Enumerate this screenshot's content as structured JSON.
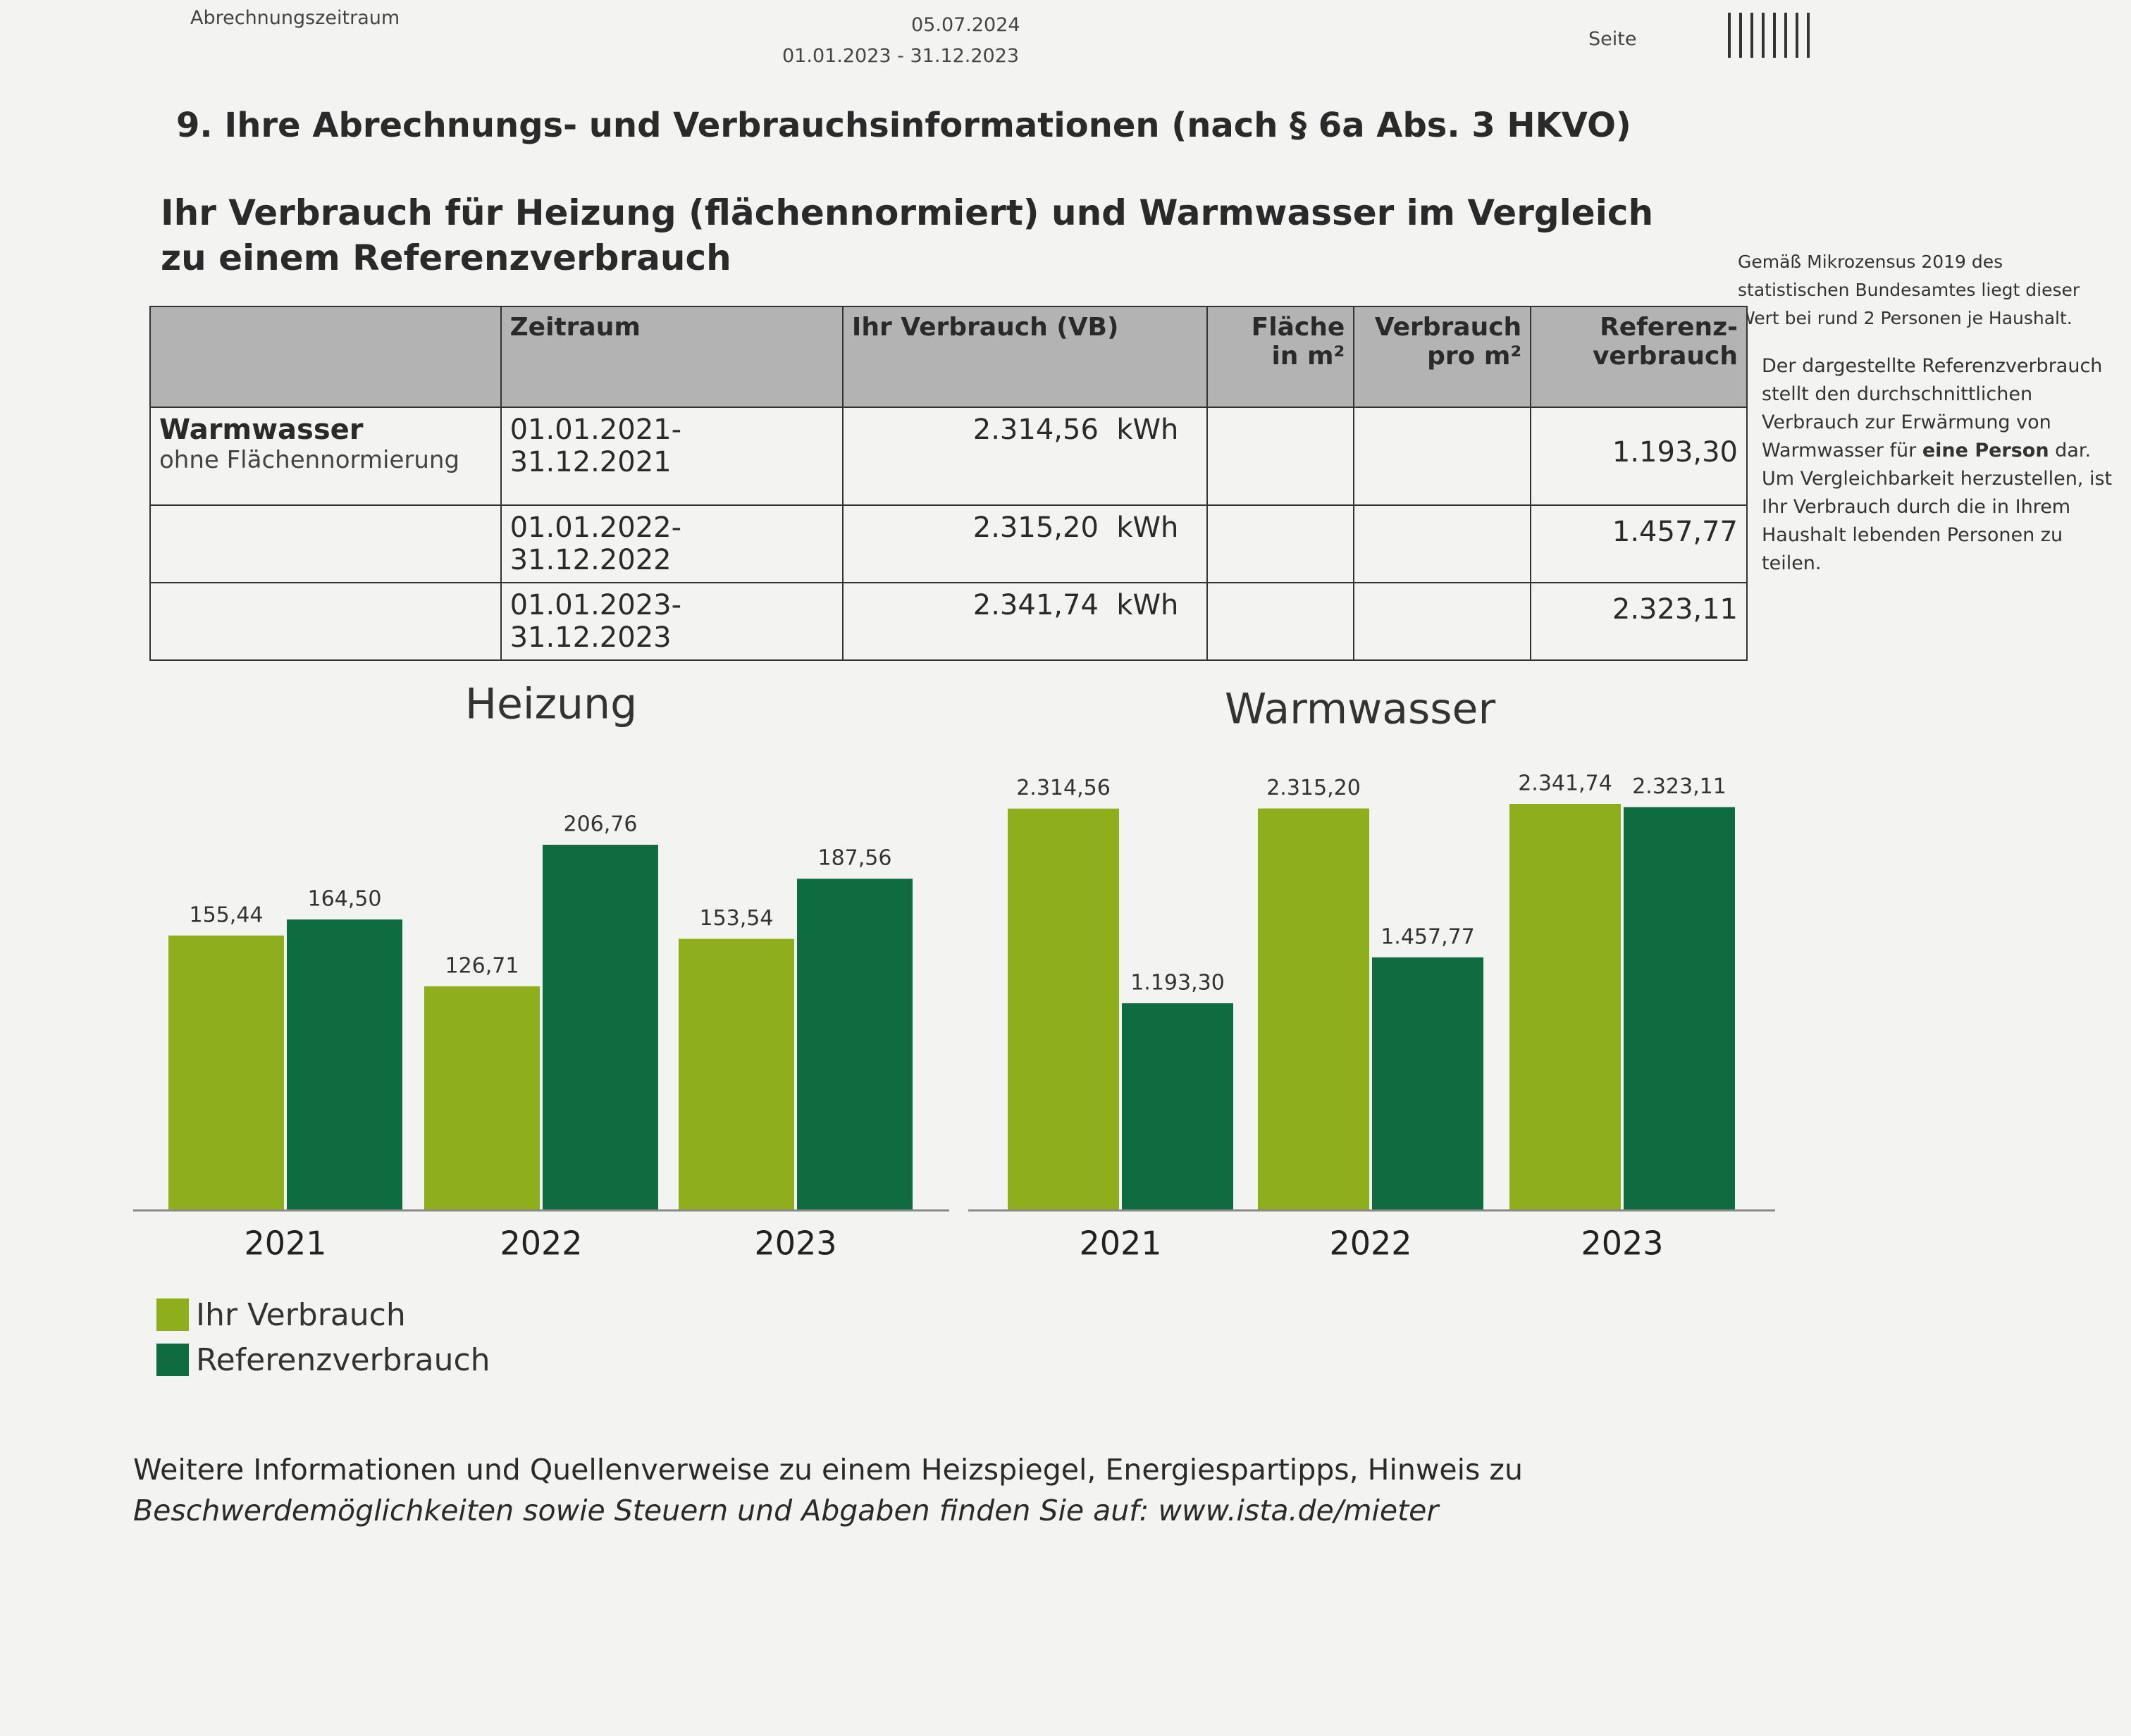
{
  "header": {
    "period_label": "Abrechnungszeitraum",
    "date": "05.07.2024",
    "period": "01.01.2023 - 31.12.2023",
    "page_label": "Seite"
  },
  "section_title": "9. Ihre Abrechnungs- und Verbrauchsinformationen (nach § 6a Abs. 3 HKVO)",
  "subtitle": "Ihr Verbrauch für Heizung (flächennormiert) und Warmwasser im Vergleich zu einem Referenzverbrauch",
  "table": {
    "columns": [
      "Zeitraum",
      "Ihr Verbrauch (VB)",
      [
        "Fläche",
        "in m²"
      ],
      [
        "Verbrauch",
        "pro m²"
      ],
      [
        "Referenz-",
        "verbrauch"
      ]
    ],
    "rows": [
      {
        "label": "Warmwasser",
        "sublabel": "ohne Flächennormierung",
        "period": "01.01.2021-31.12.2021",
        "consumption": "2.314,56",
        "unit": "kWh",
        "reference": "1.193,30"
      },
      {
        "period": "01.01.2022-31.12.2022",
        "consumption": "2.315,20",
        "unit": "kWh",
        "reference": "1.457,77"
      },
      {
        "period": "01.01.2023-31.12.2023",
        "consumption": "2.341,74",
        "unit": "kWh",
        "reference": "2.323,11"
      }
    ]
  },
  "notes": [
    {
      "text": "Gemäß Mikrozensus 2019 des statistischen Bundesamtes liegt dieser Wert bei rund 2 Personen je Haushalt."
    },
    {
      "before": "Der dargestellte Referenzverbrauch stellt den durchschnittlichen Verbrauch zur Erwärmung von Warmwasser für ",
      "emphasis": "eine Person",
      "after": " dar. Um Vergleichbarkeit herzustellen, ist Ihr Verbrauch durch die in Ihrem Haushalt lebenden Personen zu teilen."
    }
  ],
  "chart_data": [
    {
      "type": "bar",
      "title": "Heizung",
      "categories": [
        "2021",
        "2022",
        "2023"
      ],
      "series": [
        {
          "name": "Ihr Verbrauch",
          "color": "#8fae1b",
          "values": [
            155.44,
            126.71,
            153.54
          ],
          "value_labels": [
            "155,44",
            "126,71",
            "153,54"
          ]
        },
        {
          "name": "Referenzverbrauch",
          "color": "#0f6b40",
          "values": [
            164.5,
            206.76,
            187.56
          ],
          "value_labels": [
            "164,50",
            "206,76",
            "187,56"
          ]
        }
      ]
    },
    {
      "type": "bar",
      "title": "Warmwasser",
      "categories": [
        "2021",
        "2022",
        "2023"
      ],
      "series": [
        {
          "color": "#8fae1b",
          "values": [
            2314.56,
            2315.2,
            2341.74
          ],
          "value_labels": [
            "2.314,56",
            "2.315,20",
            "2.341,74"
          ]
        },
        {
          "color": "#0f6b40",
          "values": [
            1193.3,
            1457.77,
            2323.11
          ],
          "value_labels": [
            "1.193,30",
            "1.457,77",
            "2.323,11"
          ]
        }
      ]
    }
  ],
  "footer": {
    "line1": "Weitere Informationen und Quellenverweise zu einem Heizspiegel, Energiespartipps, Hinweis zu",
    "line2": "Beschwerdemöglichkeiten sowie Steuern und Abgaben finden Sie auf: www.ista.de/mieter"
  }
}
